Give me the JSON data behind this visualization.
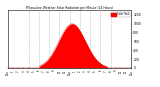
{
  "title": "Milwaukee Weather Solar Radiation per Minute (24 Hours)",
  "background_color": "#ffffff",
  "plot_background": "#ffffff",
  "fill_color": "#ff0000",
  "line_color": "#cc0000",
  "legend_label": "Solar Rad",
  "legend_color": "#ff0000",
  "grid_color": "#888888",
  "y_ticks": [
    0,
    200,
    400,
    600,
    800,
    1000,
    1200
  ],
  "ylim": [
    0,
    1300
  ],
  "xlim": [
    0,
    1440
  ],
  "peak_minute": 750,
  "peak_value": 1000,
  "sigma": 155,
  "day_start": 370,
  "day_end": 1160,
  "grid_positions": [
    240,
    360,
    480,
    600,
    720,
    840,
    960,
    1080,
    1200
  ],
  "x_tick_positions": [
    0,
    60,
    120,
    180,
    240,
    300,
    360,
    420,
    480,
    540,
    600,
    660,
    720,
    780,
    840,
    900,
    960,
    1020,
    1080,
    1140,
    1200,
    1260,
    1320,
    1380,
    1440
  ],
  "x_tick_labels": [
    "12a",
    "1",
    "2",
    "3",
    "4",
    "5",
    "6",
    "7",
    "8",
    "9",
    "10",
    "11",
    "12p",
    "1",
    "2",
    "3",
    "4",
    "5",
    "6",
    "7",
    "8",
    "9",
    "10",
    "11",
    "12a"
  ]
}
